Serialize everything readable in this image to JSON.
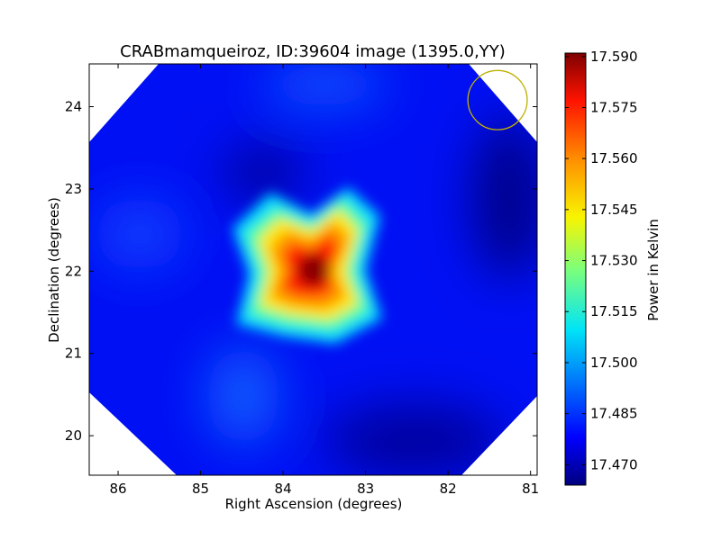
{
  "chart_data": {
    "type": "heatmap",
    "title": "CRABmamqueiroz, ID:39604 image (1395.0,YY)",
    "xlabel": "Right Ascension (degrees)",
    "ylabel": "Declination (degrees)",
    "xlim": [
      86.35,
      80.92
    ],
    "ylim": [
      19.52,
      24.52
    ],
    "x_ticks": [
      86,
      85,
      84,
      83,
      82,
      81
    ],
    "y_ticks": [
      20,
      21,
      22,
      23,
      24
    ],
    "colorbar": {
      "label": "Power in Kelvin",
      "colormap": "jet",
      "range": [
        17.464,
        17.591
      ],
      "ticks": [
        "17.590",
        "17.575",
        "17.560",
        "17.545",
        "17.530",
        "17.515",
        "17.500",
        "17.485",
        "17.470"
      ]
    },
    "source": {
      "ra": 83.63,
      "dec": 22.01,
      "peak_kelvin": 17.59,
      "shape": "four-lobed cross"
    },
    "background_kelvin": 17.475,
    "beam_circle": {
      "ra": 81.4,
      "dec": 24.08,
      "radius_deg": 0.36,
      "color": "#bfb000"
    },
    "grid": false
  }
}
